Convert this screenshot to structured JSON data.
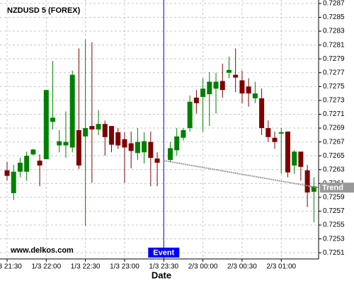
{
  "chart_data": {
    "type": "candlestick",
    "title": "NZDUSD 5 (FOREX)",
    "watermark": "www.delkos.com",
    "x_label": "Date",
    "x": [
      "1/3 21:30",
      null,
      null,
      null,
      null,
      null,
      "1/3 22:00",
      null,
      null,
      null,
      null,
      null,
      "1/3 22:30",
      null,
      null,
      null,
      null,
      null,
      "1/3 23:00",
      null,
      null,
      null,
      null,
      null,
      "1/3 23:30",
      null,
      null,
      null,
      null,
      null,
      "2/3 00:00",
      null,
      null,
      null,
      null,
      null,
      "2/3 00:30",
      null,
      null,
      null,
      null,
      null,
      "2/3 01:00",
      null,
      null,
      null,
      null,
      null
    ],
    "open": [
      0.72629,
      0.72596,
      0.72627,
      0.72627,
      0.72652,
      0.72643,
      0.72645,
      0.72699,
      0.72665,
      0.72665,
      0.72662,
      0.72687,
      0.72678,
      0.72693,
      0.72688,
      0.72696,
      0.72693,
      0.72684,
      0.72674,
      0.72668,
      0.72654,
      0.72655,
      0.7267,
      0.72646,
      null,
      0.72644,
      0.72658,
      0.72676,
      0.7269,
      0.72734,
      0.72735,
      0.72739,
      0.72747,
      0.72758,
      0.7277,
      0.72767,
      0.72759,
      0.7275,
      0.72733,
      0.72733,
      0.7269,
      0.72676,
      0.72682,
      0.72685,
      0.72636,
      0.72656,
      0.72629,
      0.72598
    ],
    "high": [
      0.72641,
      0.72637,
      0.72647,
      0.72656,
      0.7266,
      0.72652,
      0.72745,
      0.72787,
      0.72687,
      0.72714,
      0.72773,
      0.72805,
      0.72818,
      0.72814,
      0.72716,
      0.72701,
      0.72693,
      0.7269,
      0.72684,
      0.72685,
      0.7269,
      0.72684,
      0.72685,
      0.72655,
      null,
      0.7267,
      0.7269,
      0.7269,
      0.72737,
      0.72745,
      0.72762,
      0.72771,
      0.7277,
      0.72783,
      0.72793,
      0.72805,
      0.72773,
      0.72762,
      0.72757,
      0.72747,
      0.72701,
      0.72685,
      0.7269,
      0.72685,
      0.72658,
      0.72656,
      0.72637,
      0.72619
    ],
    "low": [
      0.72614,
      0.72586,
      0.72619,
      0.72614,
      0.7265,
      0.72606,
      0.72645,
      0.72688,
      0.72655,
      0.72647,
      0.72655,
      0.72631,
      0.72549,
      0.72611,
      0.7268,
      0.7265,
      0.72655,
      0.7266,
      0.72611,
      0.72632,
      0.72644,
      0.72639,
      0.72606,
      0.72606,
      null,
      0.72641,
      0.7265,
      0.72672,
      0.72685,
      0.72711,
      0.72685,
      0.72693,
      0.72711,
      0.72734,
      0.72762,
      0.72742,
      0.72726,
      0.72721,
      0.72726,
      0.7268,
      0.7267,
      0.7266,
      0.72624,
      0.72619,
      0.72624,
      0.72614,
      0.72576,
      0.72554
    ],
    "close": [
      0.72621,
      0.72627,
      0.7264,
      0.7265,
      0.72659,
      0.72636,
      0.72745,
      0.72705,
      0.72671,
      0.7267,
      0.72767,
      0.72636,
      0.7269,
      0.72688,
      0.72696,
      0.72677,
      0.72666,
      0.72665,
      0.72662,
      0.72657,
      0.7267,
      0.72671,
      0.72647,
      0.7264,
      null,
      0.72661,
      0.72678,
      0.72687,
      0.72728,
      0.72726,
      0.72747,
      0.72757,
      0.72757,
      0.72745,
      0.72774,
      0.72763,
      0.7274,
      0.7274,
      0.7274,
      0.7269,
      0.72677,
      0.7267,
      0.72684,
      0.72626,
      0.72656,
      0.72634,
      0.72597,
      0.72606
    ],
    "up_color": "#008000",
    "down_color": "#800000",
    "ylim": [
      0.72501,
      0.72875
    ],
    "yticks": [
      0.7251,
      0.7253,
      0.7255,
      0.7257,
      0.7259,
      0.7261,
      0.7263,
      0.7265,
      0.7267,
      0.7269,
      0.7271,
      0.7273,
      0.7275,
      0.7277,
      0.7279,
      0.7281,
      0.7283,
      0.7285,
      0.7287
    ],
    "grid": true,
    "event": {
      "label": "Event",
      "x": "1/3 23:30",
      "color": "#0000ff"
    },
    "trend": {
      "label": "Trend",
      "start": 0.72643,
      "end": 0.72604,
      "color": "#999999"
    }
  }
}
